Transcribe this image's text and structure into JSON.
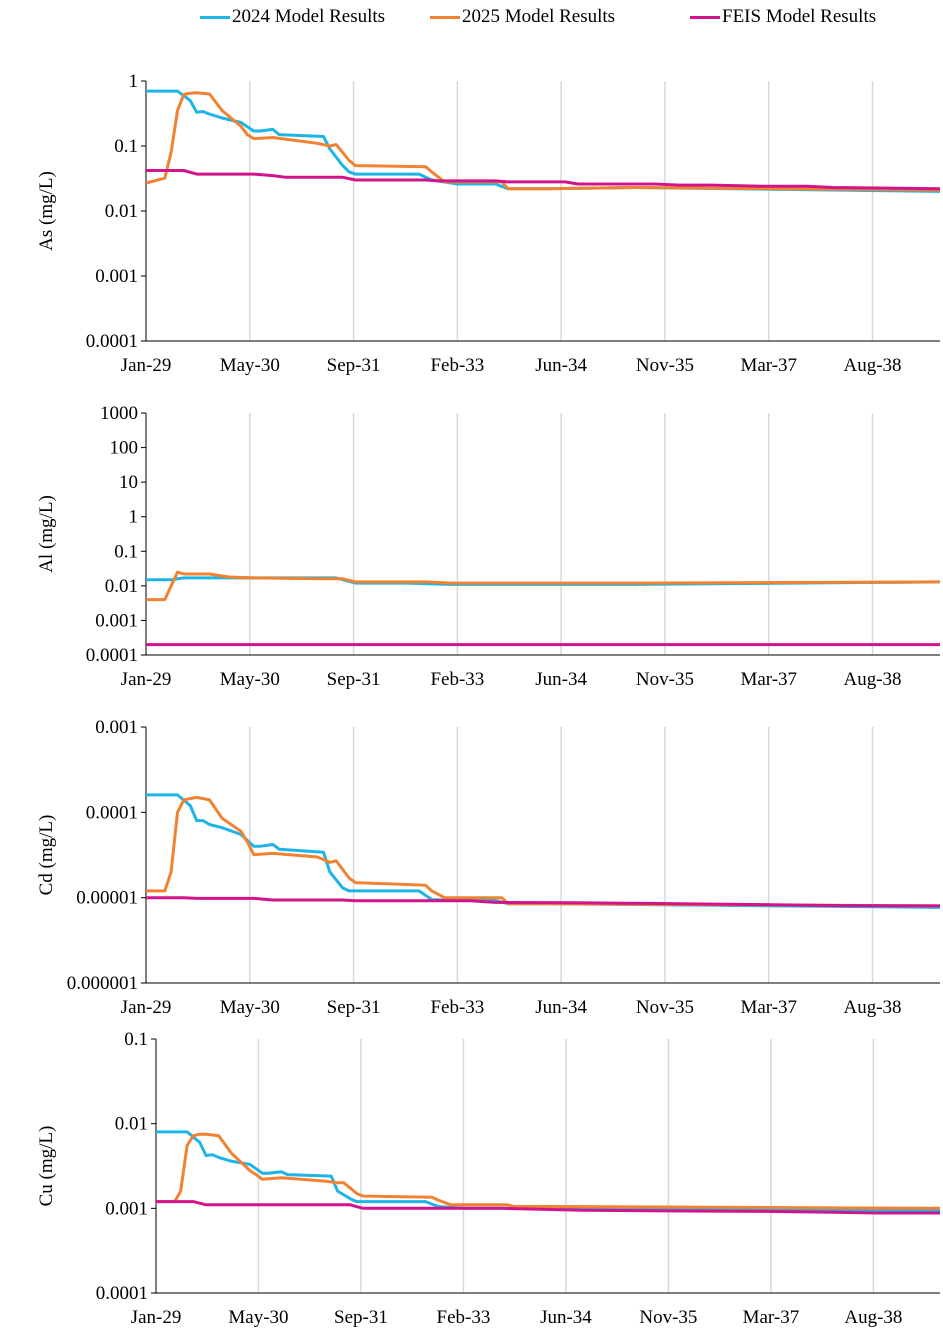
{
  "legend": [
    {
      "name": "2024 Model Results",
      "color": "#1EB4E6"
    },
    {
      "name": "2025 Model Results",
      "color": "#F08232"
    },
    {
      "name": "FEIS Model Results",
      "color": "#D2148C"
    }
  ],
  "chart_data": [
    {
      "type": "line",
      "ylabel": "As (mg/L)",
      "yscale": "log",
      "ylim": [
        0.0001,
        1
      ],
      "yticks": [
        "0.0001",
        "0.001",
        "0.01",
        "0.1",
        "1"
      ],
      "xlim": [
        "2029-01-01",
        "2039-06-01"
      ],
      "xticks": [
        "Jan-29",
        "May-30",
        "Sep-31",
        "Feb-33",
        "Jun-34",
        "Nov-35",
        "Mar-37",
        "Aug-38"
      ],
      "grid": "vertical",
      "series": [
        {
          "name": "2024 Model Results",
          "x": [
            "2029-01-01",
            "2029-06-01",
            "2029-08-01",
            "2029-09-01",
            "2029-10-01",
            "2029-11-01",
            "2030-01-01",
            "2030-04-01",
            "2030-06-01",
            "2030-07-01",
            "2030-09-01",
            "2030-10-01",
            "2031-05-01",
            "2031-06-01",
            "2031-08-01",
            "2031-09-01",
            "2031-10-01",
            "2032-08-01",
            "2032-10-01",
            "2033-02-01",
            "2033-08-01",
            "2033-10-01",
            "2034-04-01",
            "2035-06-01",
            "2039-06-01"
          ],
          "values": [
            0.7,
            0.7,
            0.5,
            0.33,
            0.34,
            0.31,
            0.27,
            0.23,
            0.17,
            0.17,
            0.18,
            0.15,
            0.14,
            0.09,
            0.05,
            0.04,
            0.037,
            0.037,
            0.03,
            0.026,
            0.026,
            0.022,
            0.022,
            0.023,
            0.02
          ]
        },
        {
          "name": "2025 Model Results",
          "x": [
            "2029-01-01",
            "2029-04-01",
            "2029-05-01",
            "2029-06-01",
            "2029-07-01",
            "2029-08-01",
            "2029-09-01",
            "2029-11-01",
            "2030-01-01",
            "2030-04-01",
            "2030-05-01",
            "2030-06-01",
            "2030-09-01",
            "2031-04-01",
            "2031-06-01",
            "2031-07-01",
            "2031-09-01",
            "2031-10-01",
            "2032-09-01",
            "2032-10-01",
            "2032-12-01",
            "2033-09-01",
            "2033-10-01",
            "2034-04-01",
            "2035-06-01",
            "2039-06-01"
          ],
          "values": [
            0.027,
            0.032,
            0.08,
            0.35,
            0.62,
            0.65,
            0.66,
            0.63,
            0.35,
            0.2,
            0.15,
            0.13,
            0.135,
            0.11,
            0.1,
            0.105,
            0.06,
            0.05,
            0.048,
            0.04,
            0.028,
            0.028,
            0.022,
            0.022,
            0.023,
            0.021
          ]
        },
        {
          "name": "FEIS Model Results",
          "x": [
            "2029-01-01",
            "2029-07-01",
            "2029-09-01",
            "2030-06-01",
            "2030-09-01",
            "2030-11-01",
            "2031-01-01",
            "2031-08-01",
            "2031-10-01",
            "2032-09-01",
            "2032-11-01",
            "2033-08-01",
            "2033-10-01",
            "2034-07-01",
            "2034-09-01",
            "2035-09-01",
            "2036-01-01",
            "2036-06-01",
            "2037-02-01",
            "2037-09-01",
            "2038-01-01",
            "2039-06-01"
          ],
          "values": [
            0.042,
            0.042,
            0.037,
            0.037,
            0.035,
            0.033,
            0.033,
            0.033,
            0.03,
            0.03,
            0.029,
            0.029,
            0.028,
            0.028,
            0.026,
            0.026,
            0.025,
            0.025,
            0.024,
            0.024,
            0.023,
            0.022
          ]
        }
      ]
    },
    {
      "type": "line",
      "ylabel": "Al (mg/L)",
      "yscale": "log",
      "ylim": [
        0.0001,
        1000
      ],
      "yticks": [
        "0.0001",
        "0.001",
        "0.01",
        "0.1",
        "1",
        "10",
        "100",
        "1000"
      ],
      "xlim": [
        "2029-01-01",
        "2039-06-01"
      ],
      "xticks": [
        "Jan-29",
        "May-30",
        "Sep-31",
        "Feb-33",
        "Jun-34",
        "Nov-35",
        "Mar-37",
        "Aug-38"
      ],
      "grid": "vertical",
      "series": [
        {
          "name": "2024 Model Results",
          "x": [
            "2029-01-01",
            "2029-05-01",
            "2029-07-01",
            "2029-09-01",
            "2030-01-01",
            "2031-07-01",
            "2031-10-01",
            "2032-06-01",
            "2033-01-01",
            "2034-04-01",
            "2035-06-01",
            "2039-06-01"
          ],
          "values": [
            0.015,
            0.015,
            0.017,
            0.017,
            0.017,
            0.017,
            0.012,
            0.012,
            0.011,
            0.011,
            0.011,
            0.013
          ]
        },
        {
          "name": "2025 Model Results",
          "x": [
            "2029-01-01",
            "2029-04-01",
            "2029-06-01",
            "2029-07-01",
            "2029-11-01",
            "2030-02-01",
            "2030-06-01",
            "2031-04-01",
            "2031-08-01",
            "2031-10-01",
            "2032-09-01",
            "2033-01-01",
            "2033-06-01",
            "2034-04-01",
            "2035-06-01",
            "2039-06-01"
          ],
          "values": [
            0.004,
            0.004,
            0.025,
            0.022,
            0.022,
            0.018,
            0.017,
            0.016,
            0.016,
            0.013,
            0.013,
            0.012,
            0.012,
            0.012,
            0.012,
            0.013
          ]
        },
        {
          "name": "FEIS Model Results",
          "x": [
            "2029-01-01",
            "2039-06-01"
          ],
          "values": [
            0.0002,
            0.0002
          ]
        }
      ]
    },
    {
      "type": "line",
      "ylabel": "Cd (mg/L)",
      "yscale": "log",
      "ylim": [
        1e-06,
        0.001
      ],
      "yticks": [
        "0.000001",
        "0.00001",
        "0.0001",
        "0.001"
      ],
      "xlim": [
        "2029-01-01",
        "2039-06-01"
      ],
      "xticks": [
        "Jan-29",
        "May-30",
        "Sep-31",
        "Feb-33",
        "Jun-34",
        "Nov-35",
        "Mar-37",
        "Aug-38"
      ],
      "grid": "vertical",
      "series": [
        {
          "name": "2024 Model Results",
          "x": [
            "2029-01-01",
            "2029-06-01",
            "2029-08-01",
            "2029-09-01",
            "2029-10-01",
            "2029-11-01",
            "2030-01-01",
            "2030-04-01",
            "2030-06-01",
            "2030-07-01",
            "2030-09-01",
            "2030-10-01",
            "2031-05-01",
            "2031-06-01",
            "2031-08-01",
            "2031-09-01",
            "2031-10-01",
            "2032-08-01",
            "2032-10-01",
            "2033-02-01",
            "2033-08-01",
            "2033-10-01",
            "2034-04-01",
            "2039-06-01"
          ],
          "values": [
            0.00016,
            0.00016,
            0.00012,
            8e-05,
            8e-05,
            7.2e-05,
            6.6e-05,
            5.5e-05,
            4e-05,
            4e-05,
            4.2e-05,
            3.7e-05,
            3.4e-05,
            2e-05,
            1.3e-05,
            1.2e-05,
            1.2e-05,
            1.2e-05,
            9.5e-06,
            9.3e-06,
            9.3e-06,
            8.5e-06,
            8.5e-06,
            7.7e-06
          ]
        },
        {
          "name": "2025 Model Results",
          "x": [
            "2029-01-01",
            "2029-04-01",
            "2029-05-01",
            "2029-06-01",
            "2029-07-01",
            "2029-08-01",
            "2029-09-01",
            "2029-11-01",
            "2030-01-01",
            "2030-04-01",
            "2030-05-01",
            "2030-06-01",
            "2030-09-01",
            "2031-04-01",
            "2031-06-01",
            "2031-07-01",
            "2031-09-01",
            "2031-10-01",
            "2032-09-01",
            "2032-10-01",
            "2032-12-01",
            "2033-09-01",
            "2033-10-01",
            "2034-04-01",
            "2039-06-01"
          ],
          "values": [
            1.2e-05,
            1.2e-05,
            2e-05,
            0.0001,
            0.00014,
            0.000145,
            0.00015,
            0.00014,
            8.5e-05,
            6e-05,
            4.5e-05,
            3.2e-05,
            3.3e-05,
            3e-05,
            2.6e-05,
            2.7e-05,
            1.7e-05,
            1.5e-05,
            1.4e-05,
            1.2e-05,
            1e-05,
            1e-05,
            8.5e-06,
            8.5e-06,
            8e-06
          ]
        },
        {
          "name": "FEIS Model Results",
          "x": [
            "2029-01-01",
            "2029-07-01",
            "2029-09-01",
            "2030-06-01",
            "2030-09-01",
            "2031-08-01",
            "2031-10-01",
            "2033-04-01",
            "2033-08-01",
            "2034-09-01",
            "2036-01-01",
            "2037-02-01",
            "2038-01-01",
            "2039-06-01"
          ],
          "values": [
            1e-05,
            1e-05,
            9.8e-06,
            9.8e-06,
            9.4e-06,
            9.4e-06,
            9.2e-06,
            9.2e-06,
            8.8e-06,
            8.7e-06,
            8.5e-06,
            8.3e-06,
            8.1e-06,
            8e-06
          ]
        }
      ]
    },
    {
      "type": "line",
      "ylabel": "Cu (mg/L)",
      "yscale": "log",
      "ylim": [
        0.0001,
        0.1
      ],
      "yticks": [
        "0.0001",
        "0.001",
        "0.01",
        "0.1"
      ],
      "xlim": [
        "2029-01-01",
        "2039-06-01"
      ],
      "xticks": [
        "Jan-29",
        "May-30",
        "Sep-31",
        "Feb-33",
        "Jun-34",
        "Nov-35",
        "Mar-37",
        "Aug-38"
      ],
      "grid": "vertical",
      "series": [
        {
          "name": "2024 Model Results",
          "x": [
            "2029-01-01",
            "2029-06-01",
            "2029-08-01",
            "2029-09-01",
            "2029-10-01",
            "2029-11-01",
            "2030-01-01",
            "2030-04-01",
            "2030-06-01",
            "2030-07-01",
            "2030-09-01",
            "2030-10-01",
            "2031-05-01",
            "2031-06-01",
            "2031-08-01",
            "2031-09-01",
            "2031-10-01",
            "2032-08-01",
            "2032-10-01",
            "2033-02-01",
            "2033-08-01",
            "2033-10-01",
            "2034-04-01",
            "2039-06-01"
          ],
          "values": [
            0.008,
            0.008,
            0.006,
            0.0042,
            0.0043,
            0.004,
            0.0036,
            0.0033,
            0.0026,
            0.0026,
            0.0027,
            0.0025,
            0.0024,
            0.0016,
            0.0013,
            0.0012,
            0.0012,
            0.0012,
            0.00105,
            0.001,
            0.001,
            0.001,
            0.001,
            0.00095
          ]
        },
        {
          "name": "2025 Model Results",
          "x": [
            "2029-01-01",
            "2029-04-01",
            "2029-05-01",
            "2029-06-01",
            "2029-07-01",
            "2029-08-01",
            "2029-09-01",
            "2029-11-01",
            "2030-01-01",
            "2030-04-01",
            "2030-05-01",
            "2030-06-01",
            "2030-09-01",
            "2031-04-01",
            "2031-06-01",
            "2031-07-01",
            "2031-09-01",
            "2031-10-01",
            "2032-09-01",
            "2032-10-01",
            "2032-12-01",
            "2033-09-01",
            "2033-10-01",
            "2034-04-01",
            "2039-06-01"
          ],
          "values": [
            0.0012,
            0.0012,
            0.0016,
            0.0055,
            0.0072,
            0.0075,
            0.0075,
            0.0072,
            0.0045,
            0.0028,
            0.0025,
            0.0022,
            0.0023,
            0.0021,
            0.002,
            0.002,
            0.0015,
            0.0014,
            0.00135,
            0.00125,
            0.0011,
            0.0011,
            0.00105,
            0.00105,
            0.001
          ]
        },
        {
          "name": "FEIS Model Results",
          "x": [
            "2029-01-01",
            "2029-07-01",
            "2029-09-01",
            "2030-06-01",
            "2031-08-01",
            "2031-10-01",
            "2033-08-01",
            "2034-09-01",
            "2036-01-01",
            "2037-02-01",
            "2038-01-01",
            "2038-08-01",
            "2039-06-01"
          ],
          "values": [
            0.0012,
            0.0012,
            0.0011,
            0.0011,
            0.0011,
            0.001,
            0.001,
            0.00095,
            0.00093,
            0.00092,
            0.0009,
            0.00088,
            0.00088
          ]
        }
      ]
    }
  ]
}
